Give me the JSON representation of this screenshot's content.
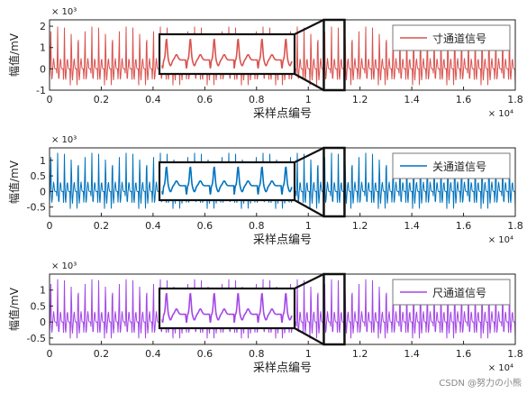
{
  "chart_data": [
    {
      "type": "line",
      "title": "",
      "xlabel": "采样点编号",
      "ylabel": "幅值/mV",
      "x_exponent": "× 10⁴",
      "y_exponent": "× 10³",
      "xlim": [
        0,
        1.8
      ],
      "ylim": [
        -1,
        2.3
      ],
      "xticks": [
        "0",
        "0.2",
        "0.4",
        "0.6",
        "0.8",
        "1",
        "1.2",
        "1.4",
        "1.6",
        "1.8"
      ],
      "yticks": [
        "-1",
        "0",
        "1",
        "2"
      ],
      "legend": {
        "position": "top-right",
        "label": "寸通道信号"
      },
      "series": [
        {
          "name": "寸通道信号",
          "color": "#d9534f",
          "baseline": 0,
          "peak": 2.0,
          "trough": -0.9
        }
      ],
      "inset": {
        "zoom_window_x": [
          1.06,
          1.14
        ],
        "note": "zoom of region near x = 1.1"
      }
    },
    {
      "type": "line",
      "title": "",
      "xlabel": "采样点编号",
      "ylabel": "幅值/mV",
      "x_exponent": "× 10⁴",
      "y_exponent": "× 10³",
      "xlim": [
        0,
        1.8
      ],
      "ylim": [
        -0.8,
        1.4
      ],
      "xticks": [
        "0",
        "0.2",
        "0.4",
        "0.6",
        "0.8",
        "1",
        "1.2",
        "1.4",
        "1.6",
        "1.8"
      ],
      "yticks": [
        "-0.5",
        "0",
        "0.5",
        "1"
      ],
      "legend": {
        "position": "top-right",
        "label": "关通道信号"
      },
      "series": [
        {
          "name": "关通道信号",
          "color": "#0072bd",
          "baseline": 0,
          "peak": 1.25,
          "trough": -0.65
        }
      ],
      "inset": {
        "zoom_window_x": [
          1.06,
          1.14
        ]
      }
    },
    {
      "type": "line",
      "title": "",
      "xlabel": "采样点编号",
      "ylabel": "幅值/mV",
      "x_exponent": "× 10⁴",
      "y_exponent": "× 10³",
      "xlim": [
        0,
        1.8
      ],
      "ylim": [
        -0.7,
        1.5
      ],
      "xticks": [
        "0",
        "0.2",
        "0.4",
        "0.6",
        "0.8",
        "1",
        "1.2",
        "1.4",
        "1.6",
        "1.8"
      ],
      "yticks": [
        "-0.5",
        "0",
        "0.5",
        "1"
      ],
      "legend": {
        "position": "top-right",
        "label": "尺通道信号"
      },
      "series": [
        {
          "name": "尺通道信号",
          "color": "#a347e6",
          "baseline": 0,
          "peak": 1.35,
          "trough": -0.6
        }
      ],
      "inset": {
        "zoom_window_x": [
          1.06,
          1.14
        ]
      }
    }
  ],
  "watermark": "CSDN @努力の小熊"
}
